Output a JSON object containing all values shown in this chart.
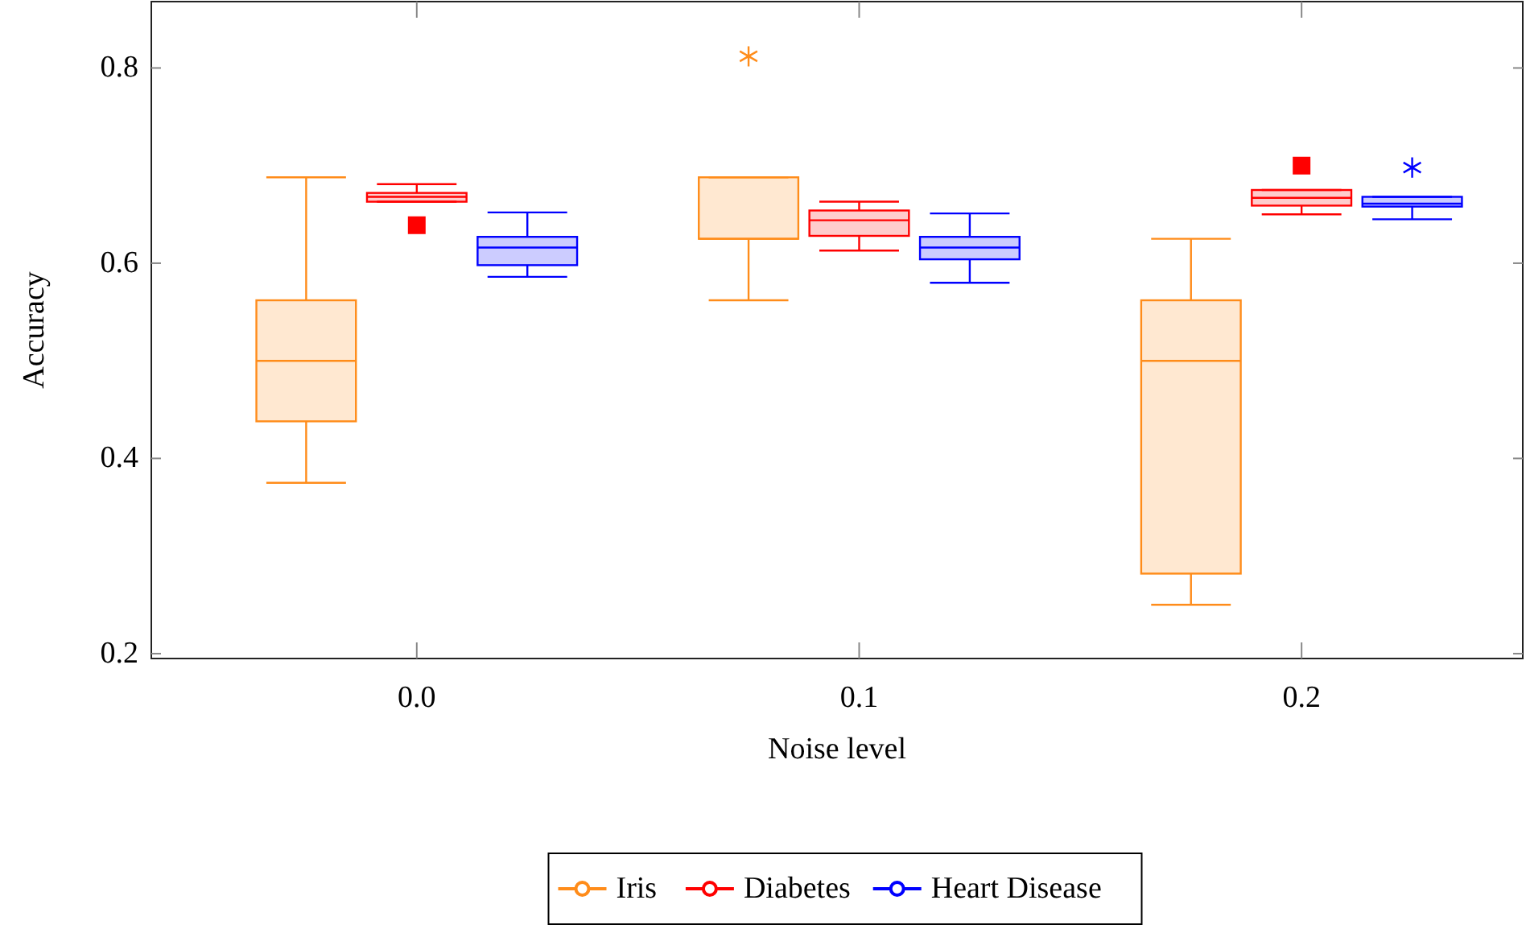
{
  "chart_data": {
    "type": "box",
    "xlabel": "Noise level",
    "ylabel": "Accuracy",
    "categories": [
      "0.0",
      "0.1",
      "0.2"
    ],
    "ylim": [
      0.195,
      0.868
    ],
    "yticks": [
      {
        "value": 0.2,
        "label": "0.2"
      },
      {
        "value": 0.4,
        "label": "0.4"
      },
      {
        "value": 0.6,
        "label": "0.6"
      },
      {
        "value": 0.8,
        "label": "0.8"
      }
    ],
    "grid": false,
    "legend": "bottom",
    "series": [
      {
        "name": "Iris",
        "color": "#ff8c1a",
        "marker": "star",
        "boxes": [
          {
            "low": 0.375,
            "q1": 0.438,
            "median": 0.5,
            "q3": 0.562,
            "high": 0.688
          },
          {
            "low": 0.562,
            "q1": 0.625,
            "median": 0.625,
            "q3": 0.688,
            "high": 0.688,
            "outliers": [
              0.812
            ]
          },
          {
            "low": 0.25,
            "q1": 0.282,
            "median": 0.5,
            "q3": 0.562,
            "high": 0.625
          }
        ]
      },
      {
        "name": "Diabetes",
        "color": "#ff0000",
        "marker": "square",
        "boxes": [
          {
            "low": 0.663,
            "q1": 0.663,
            "median": 0.668,
            "q3": 0.672,
            "high": 0.681,
            "outliers": [
              0.639
            ]
          },
          {
            "low": 0.613,
            "q1": 0.628,
            "median": 0.644,
            "q3": 0.654,
            "high": 0.663
          },
          {
            "low": 0.65,
            "q1": 0.659,
            "median": 0.667,
            "q3": 0.675,
            "high": 0.675,
            "outliers": [
              0.7
            ]
          }
        ]
      },
      {
        "name": "Heart Disease",
        "color": "#0000ff",
        "marker": "star",
        "boxes": [
          {
            "low": 0.586,
            "q1": 0.598,
            "median": 0.616,
            "q3": 0.627,
            "high": 0.652
          },
          {
            "low": 0.58,
            "q1": 0.604,
            "median": 0.616,
            "q3": 0.627,
            "high": 0.651
          },
          {
            "low": 0.645,
            "q1": 0.658,
            "median": 0.661,
            "q3": 0.668,
            "high": 0.668,
            "outliers": [
              0.698
            ]
          }
        ]
      }
    ]
  }
}
